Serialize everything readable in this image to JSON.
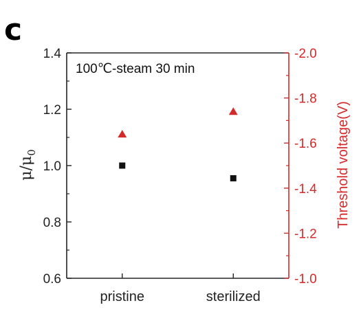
{
  "panel_label": "c",
  "chart_data": {
    "type": "scatter",
    "categories": [
      "pristine",
      "sterilized"
    ],
    "annotation": "100℃-steam 30 min",
    "y_left": {
      "label_main": "μ/μ",
      "label_sub": "0",
      "range": [
        0.6,
        1.4
      ],
      "ticks": [
        "0.6",
        "0.8",
        "1.0",
        "1.2",
        "1.4"
      ],
      "color": "#222222"
    },
    "y_right": {
      "label": "Threshold voltage(V)",
      "range": [
        -1.0,
        -2.0
      ],
      "ticks": [
        "-1.0",
        "-1.2",
        "-1.4",
        "-1.6",
        "-1.8",
        "-2.0"
      ],
      "color": "#d42a2a"
    },
    "series": [
      {
        "axis": "left",
        "marker": "square",
        "color": "#111111",
        "values": [
          1.0,
          0.955
        ]
      },
      {
        "axis": "right",
        "marker": "triangle",
        "color": "#d42a2a",
        "values": [
          -1.64,
          -1.74
        ]
      }
    ]
  }
}
